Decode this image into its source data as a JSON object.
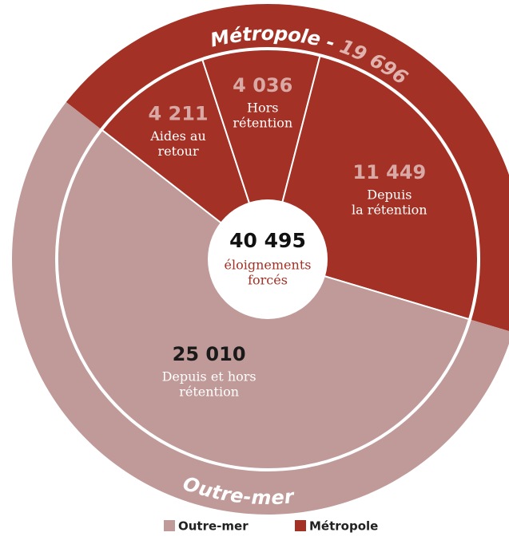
{
  "chart_data": {
    "type": "sunburst",
    "center": {
      "value": 40495,
      "value_label": "40 495",
      "label": [
        "éloignements",
        "forcés"
      ]
    },
    "groups": [
      {
        "name": "Métropole",
        "ring_label": "Métropole -",
        "value": 19696,
        "value_label": "19 696",
        "color": "#a33125",
        "children": [
          {
            "name": [
              "Aides au",
              "retour"
            ],
            "value": 4211,
            "value_label": "4 211"
          },
          {
            "name": [
              "Hors",
              "rétention"
            ],
            "value": 4036,
            "value_label": "4 036"
          },
          {
            "name": [
              "Depuis",
              "la rétention"
            ],
            "value": 11449,
            "value_label": "11 449"
          }
        ]
      },
      {
        "name": "Outre-mer",
        "ring_label": "Outre-mer",
        "value": 25010,
        "color": "#c09a98",
        "children": [
          {
            "name": [
              "Depuis et hors",
              "rétention"
            ],
            "value": 25010,
            "value_label": "25 010"
          }
        ]
      }
    ],
    "legend": [
      "Outre-mer",
      "Métropole"
    ]
  }
}
